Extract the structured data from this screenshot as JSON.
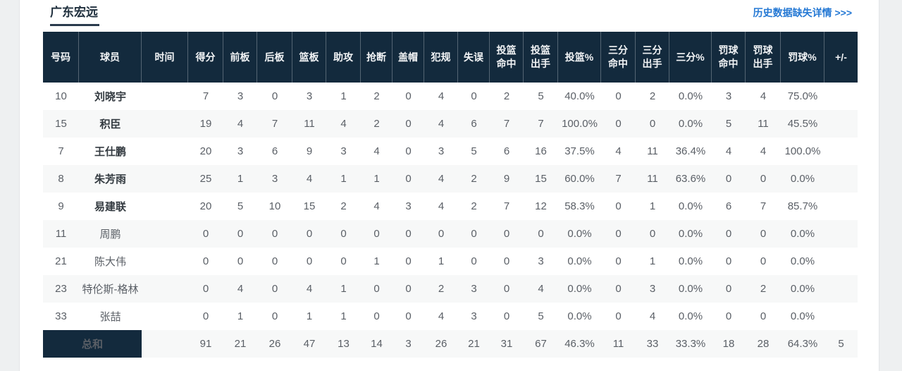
{
  "page": {
    "title": "广东宏远",
    "history_link": "历史数据缺失详情 >>>"
  },
  "colors": {
    "header_bg": "#132a3d",
    "stripe_bg": "#f7f8f8",
    "link_blue": "#2478d4",
    "title_dark": "#21313f"
  },
  "table": {
    "headers": [
      "号码",
      "球员",
      "时间",
      "得分",
      "前板",
      "后板",
      "篮板",
      "助攻",
      "抢断",
      "盖帽",
      "犯规",
      "失误",
      "投篮\n命中",
      "投篮\n出手",
      "投篮%",
      "三分\n命中",
      "三分\n出手",
      "三分%",
      "罚球\n命中",
      "罚球\n出手",
      "罚球%",
      "+/-"
    ],
    "rows": [
      {
        "bold": true,
        "cells": [
          "10",
          "刘晓宇",
          "",
          "7",
          "3",
          "0",
          "3",
          "1",
          "2",
          "0",
          "4",
          "0",
          "2",
          "5",
          "40.0%",
          "0",
          "2",
          "0.0%",
          "3",
          "4",
          "75.0%",
          ""
        ]
      },
      {
        "bold": true,
        "cells": [
          "15",
          "积臣",
          "",
          "19",
          "4",
          "7",
          "11",
          "4",
          "2",
          "0",
          "4",
          "6",
          "7",
          "7",
          "100.0%",
          "0",
          "0",
          "0.0%",
          "5",
          "11",
          "45.5%",
          ""
        ]
      },
      {
        "bold": true,
        "cells": [
          "7",
          "王仕鹏",
          "",
          "20",
          "3",
          "6",
          "9",
          "3",
          "4",
          "0",
          "3",
          "5",
          "6",
          "16",
          "37.5%",
          "4",
          "11",
          "36.4%",
          "4",
          "4",
          "100.0%",
          ""
        ]
      },
      {
        "bold": true,
        "cells": [
          "8",
          "朱芳雨",
          "",
          "25",
          "1",
          "3",
          "4",
          "1",
          "1",
          "0",
          "4",
          "2",
          "9",
          "15",
          "60.0%",
          "7",
          "11",
          "63.6%",
          "0",
          "0",
          "0.0%",
          ""
        ]
      },
      {
        "bold": true,
        "cells": [
          "9",
          "易建联",
          "",
          "20",
          "5",
          "10",
          "15",
          "2",
          "4",
          "3",
          "4",
          "2",
          "7",
          "12",
          "58.3%",
          "0",
          "1",
          "0.0%",
          "6",
          "7",
          "85.7%",
          ""
        ]
      },
      {
        "bold": false,
        "cells": [
          "11",
          "周鹏",
          "",
          "0",
          "0",
          "0",
          "0",
          "0",
          "0",
          "0",
          "0",
          "0",
          "0",
          "0",
          "0.0%",
          "0",
          "0",
          "0.0%",
          "0",
          "0",
          "0.0%",
          ""
        ]
      },
      {
        "bold": false,
        "cells": [
          "21",
          "陈大伟",
          "",
          "0",
          "0",
          "0",
          "0",
          "0",
          "1",
          "0",
          "1",
          "0",
          "0",
          "3",
          "0.0%",
          "0",
          "1",
          "0.0%",
          "0",
          "0",
          "0.0%",
          ""
        ]
      },
      {
        "bold": false,
        "cells": [
          "23",
          "特伦斯-格林",
          "",
          "0",
          "4",
          "0",
          "4",
          "1",
          "0",
          "0",
          "2",
          "3",
          "0",
          "4",
          "0.0%",
          "0",
          "3",
          "0.0%",
          "0",
          "2",
          "0.0%",
          ""
        ]
      },
      {
        "bold": false,
        "cells": [
          "33",
          "张喆",
          "",
          "0",
          "1",
          "0",
          "1",
          "1",
          "0",
          "0",
          "4",
          "3",
          "0",
          "5",
          "0.0%",
          "0",
          "4",
          "0.0%",
          "0",
          "0",
          "0.0%",
          ""
        ]
      }
    ],
    "totals_label": "总和",
    "totals": [
      "",
      "91",
      "21",
      "26",
      "47",
      "13",
      "14",
      "3",
      "26",
      "21",
      "31",
      "67",
      "46.3%",
      "11",
      "33",
      "33.3%",
      "18",
      "28",
      "64.3%",
      "5"
    ]
  }
}
